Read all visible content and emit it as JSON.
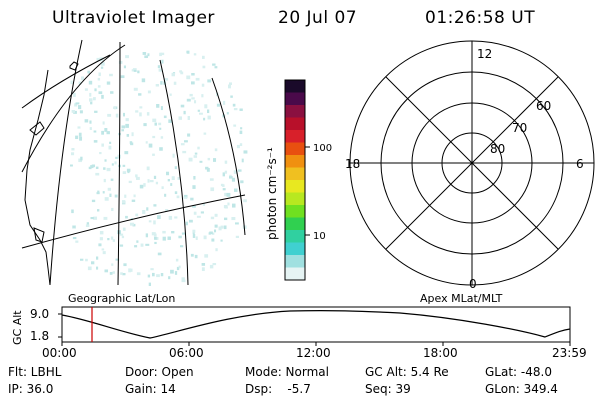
{
  "header": {
    "instrument": "Ultraviolet Imager",
    "date": "20 Jul 07",
    "time": "01:26:58 UT"
  },
  "colorbar": {
    "unit_label": "photon cm⁻²s⁻¹",
    "ticks": [
      "100",
      "10"
    ],
    "colors": [
      "#1a0a2a",
      "#4a0a4a",
      "#8a1040",
      "#b8102a",
      "#d8202a",
      "#e85010",
      "#f09010",
      "#f0c020",
      "#e8e820",
      "#b8e820",
      "#70e020",
      "#30d050",
      "#30d0a0",
      "#40d0d0",
      "#a0e0e0",
      "#e6f4f4"
    ]
  },
  "polar": {
    "hour_labels": {
      "top": "12",
      "left": "18",
      "right": "6",
      "bottom": "0"
    },
    "lat_labels": [
      "60",
      "70",
      "80"
    ]
  },
  "map_titles": {
    "left": "Geographic Lat/Lon",
    "right": "Apex MLat/MLT"
  },
  "altplot": {
    "ylabel": "GC Alt",
    "yticks": [
      "9.0",
      "1.8"
    ],
    "xticks": [
      "00:00",
      "06:00",
      "12:00",
      "18:00",
      "23:59"
    ],
    "marker_color": "#cc0000"
  },
  "info": {
    "row1": {
      "filter": "Flt: LBHL",
      "door": "Door: Open",
      "mode": "Mode: Normal",
      "gcalt": "GC Alt: 5.4 Re",
      "glat": "GLat: -48.0"
    },
    "row2": {
      "ip": "IP: 36.0",
      "gain": "Gain: 14",
      "dsp": "Dsp:    -5.7",
      "seq": "Seq: 39",
      "glon": "GLon: 349.4"
    }
  }
}
